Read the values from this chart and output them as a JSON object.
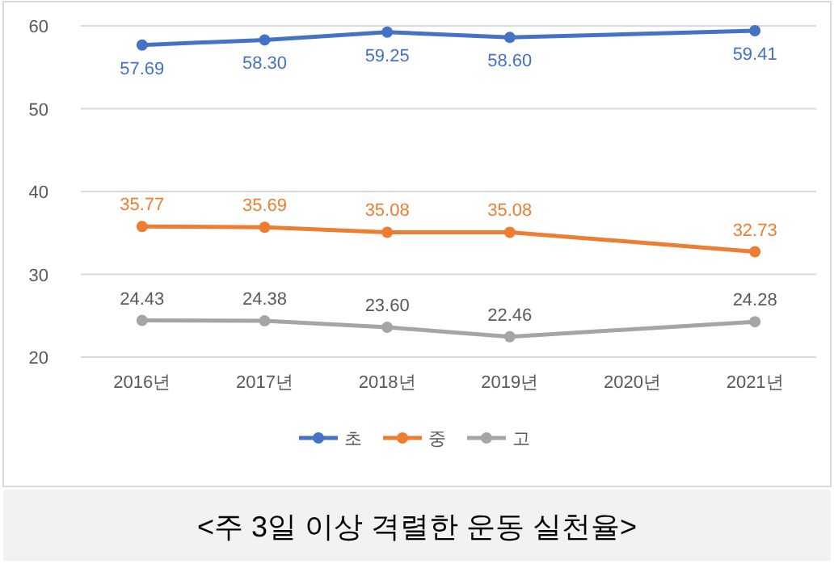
{
  "chart_data": {
    "type": "line",
    "categories": [
      "2016년",
      "2017년",
      "2018년",
      "2019년",
      "2020년",
      "2021년"
    ],
    "series": [
      {
        "name": "초",
        "color": "#4472c4",
        "values": [
          57.69,
          58.3,
          59.25,
          58.6,
          null,
          59.41
        ],
        "value_labels": [
          "57.69",
          "58.30",
          "59.25",
          "58.60",
          null,
          "59.41"
        ]
      },
      {
        "name": "중",
        "color": "#ed7d31",
        "values": [
          35.77,
          35.69,
          35.08,
          35.08,
          null,
          32.73
        ],
        "value_labels": [
          "35.77",
          "35.69",
          "35.08",
          "35.08",
          null,
          "32.73"
        ]
      },
      {
        "name": "고",
        "color": "#a5a5a5",
        "values": [
          24.43,
          24.38,
          23.6,
          22.46,
          null,
          24.28
        ],
        "value_labels": [
          "24.43",
          "24.38",
          "23.60",
          "22.46",
          null,
          "24.28"
        ]
      }
    ],
    "ylim": [
      20,
      60
    ],
    "yticks": [
      20,
      30,
      40,
      50,
      60
    ],
    "grid": "y",
    "legend": "bottom",
    "marker": "circle",
    "line_style": "solid",
    "annotations": [
      "<주 3일 이상 격렬한 운동 실천율>"
    ]
  }
}
